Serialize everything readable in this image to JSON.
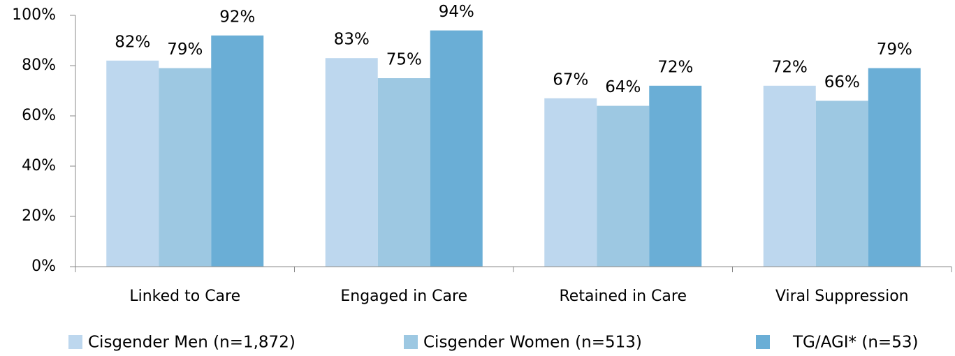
{
  "chart_data": {
    "type": "bar",
    "categories": [
      "Linked to Care",
      "Engaged in Care",
      "Retained in Care",
      "Viral Suppression"
    ],
    "series": [
      {
        "name": "Cisgender Men (n=1,872)",
        "color": "#bdd7ee",
        "values": [
          82,
          83,
          67,
          72
        ],
        "value_labels": [
          "82%",
          "83%",
          "67%",
          "72%"
        ]
      },
      {
        "name": "Cisgender Women (n=513)",
        "color": "#9dc8e2",
        "values": [
          79,
          75,
          64,
          66
        ],
        "value_labels": [
          "79%",
          "75%",
          "64%",
          "66%"
        ]
      },
      {
        "name": "TG/AGI* (n=53)",
        "color": "#6aaed6",
        "values": [
          92,
          94,
          72,
          79
        ],
        "value_labels": [
          "92%",
          "94%",
          "72%",
          "79%"
        ]
      }
    ],
    "ylim": [
      0,
      100
    ],
    "yticks": [
      {
        "value": 0,
        "label": "0%"
      },
      {
        "value": 20,
        "label": "20%"
      },
      {
        "value": 40,
        "label": "40%"
      },
      {
        "value": 60,
        "label": "60%"
      },
      {
        "value": 80,
        "label": "80%"
      },
      {
        "value": 100,
        "label": "100%"
      }
    ],
    "grid": false,
    "legend": "bottom"
  }
}
